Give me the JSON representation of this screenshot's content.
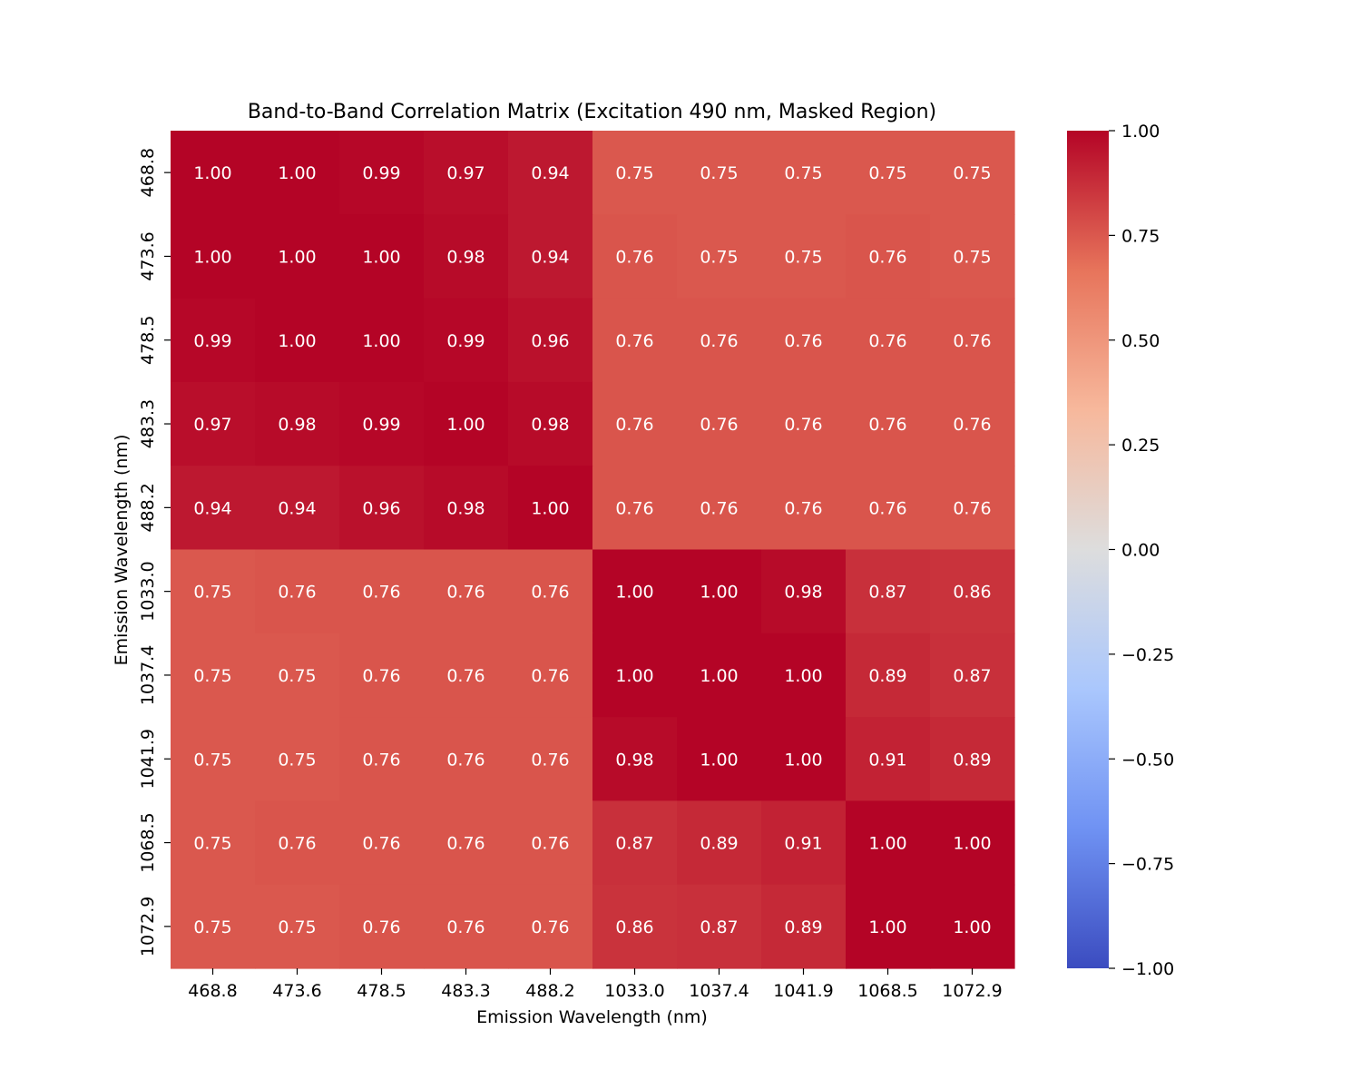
{
  "chart_data": {
    "type": "heatmap",
    "title": "Band-to-Band Correlation Matrix (Excitation 490 nm, Masked Region)",
    "xlabel": "Emission Wavelength (nm)",
    "ylabel": "Emission Wavelength (nm)",
    "x_categories": [
      "468.8",
      "473.6",
      "478.5",
      "483.3",
      "488.2",
      "1033.0",
      "1037.4",
      "1041.9",
      "1068.5",
      "1072.9"
    ],
    "y_categories": [
      "468.8",
      "473.6",
      "478.5",
      "483.3",
      "488.2",
      "1033.0",
      "1037.4",
      "1041.9",
      "1068.5",
      "1072.9"
    ],
    "values": [
      [
        1.0,
        1.0,
        0.99,
        0.97,
        0.94,
        0.75,
        0.75,
        0.75,
        0.75,
        0.75
      ],
      [
        1.0,
        1.0,
        1.0,
        0.98,
        0.94,
        0.76,
        0.75,
        0.75,
        0.76,
        0.75
      ],
      [
        0.99,
        1.0,
        1.0,
        0.99,
        0.96,
        0.76,
        0.76,
        0.76,
        0.76,
        0.76
      ],
      [
        0.97,
        0.98,
        0.99,
        1.0,
        0.98,
        0.76,
        0.76,
        0.76,
        0.76,
        0.76
      ],
      [
        0.94,
        0.94,
        0.96,
        0.98,
        1.0,
        0.76,
        0.76,
        0.76,
        0.76,
        0.76
      ],
      [
        0.75,
        0.76,
        0.76,
        0.76,
        0.76,
        1.0,
        1.0,
        0.98,
        0.87,
        0.86
      ],
      [
        0.75,
        0.75,
        0.76,
        0.76,
        0.76,
        1.0,
        1.0,
        1.0,
        0.89,
        0.87
      ],
      [
        0.75,
        0.75,
        0.76,
        0.76,
        0.76,
        0.98,
        1.0,
        1.0,
        0.91,
        0.89
      ],
      [
        0.75,
        0.76,
        0.76,
        0.76,
        0.76,
        0.87,
        0.89,
        0.91,
        1.0,
        1.0
      ],
      [
        0.75,
        0.75,
        0.76,
        0.76,
        0.76,
        0.86,
        0.87,
        0.89,
        1.0,
        1.0
      ]
    ],
    "value_format": "2 decimals",
    "colormap": "coolwarm",
    "colormap_stops": [
      "#3b4cc0",
      "#6f92f3",
      "#aac7fd",
      "#dddddd",
      "#f7b89c",
      "#e7745b",
      "#b40426"
    ],
    "vmin": -1.0,
    "vmax": 1.0,
    "colorbar_ticks": [
      "1.00",
      "0.75",
      "0.50",
      "0.25",
      "0.00",
      "−0.25",
      "−0.50",
      "−0.75",
      "−1.00"
    ],
    "colorbar_tick_values": [
      1.0,
      0.75,
      0.5,
      0.25,
      0.0,
      -0.25,
      -0.5,
      -0.75,
      -1.0
    ],
    "grid": false,
    "legend": "colorbar-right"
  }
}
